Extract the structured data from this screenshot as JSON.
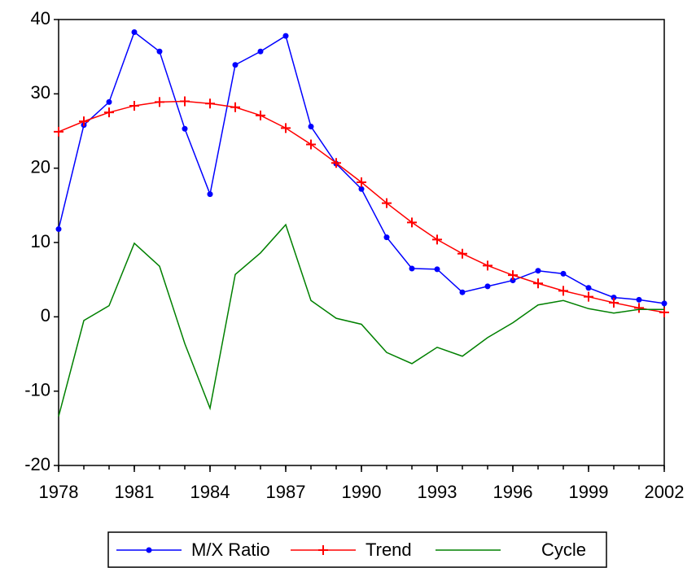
{
  "chart_data": {
    "type": "line",
    "x": [
      1978,
      1979,
      1980,
      1981,
      1982,
      1983,
      1984,
      1985,
      1986,
      1987,
      1988,
      1989,
      1990,
      1991,
      1992,
      1993,
      1994,
      1995,
      1996,
      1997,
      1998,
      1999,
      2000,
      2001,
      2002
    ],
    "series": [
      {
        "name": "M/X Ratio",
        "color": "#0000ff",
        "marker": "dot",
        "values": [
          11.8,
          25.8,
          28.9,
          38.3,
          35.7,
          25.3,
          16.5,
          33.9,
          35.7,
          37.8,
          25.6,
          20.6,
          17.2,
          10.7,
          6.5,
          6.4,
          3.3,
          4.1,
          4.9,
          6.2,
          5.8,
          3.9,
          2.6,
          2.3,
          1.8
        ]
      },
      {
        "name": "Trend",
        "color": "#ff0000",
        "marker": "plus",
        "values": [
          24.9,
          26.3,
          27.5,
          28.4,
          28.9,
          29.0,
          28.7,
          28.2,
          27.1,
          25.4,
          23.2,
          20.7,
          18.1,
          15.3,
          12.7,
          10.4,
          8.5,
          6.9,
          5.6,
          4.5,
          3.5,
          2.7,
          1.9,
          1.2,
          0.6
        ]
      },
      {
        "name": "Cycle",
        "color": "#008000",
        "marker": "none",
        "values": [
          -13.4,
          -0.5,
          1.5,
          9.9,
          6.8,
          -3.6,
          -12.3,
          5.7,
          8.6,
          12.4,
          2.2,
          -0.2,
          -1.0,
          -4.8,
          -6.3,
          -4.1,
          -5.3,
          -2.8,
          -0.8,
          1.6,
          2.2,
          1.1,
          0.5,
          1.0,
          1.0
        ]
      }
    ],
    "xlim": [
      1978,
      2002
    ],
    "xticks": [
      1978,
      1981,
      1984,
      1987,
      1990,
      1993,
      1996,
      1999,
      2002
    ],
    "ylim": [
      -20,
      40
    ],
    "yticks": [
      -20,
      -10,
      0,
      10,
      20,
      30,
      40
    ],
    "grid": false,
    "legend": "bottom"
  }
}
